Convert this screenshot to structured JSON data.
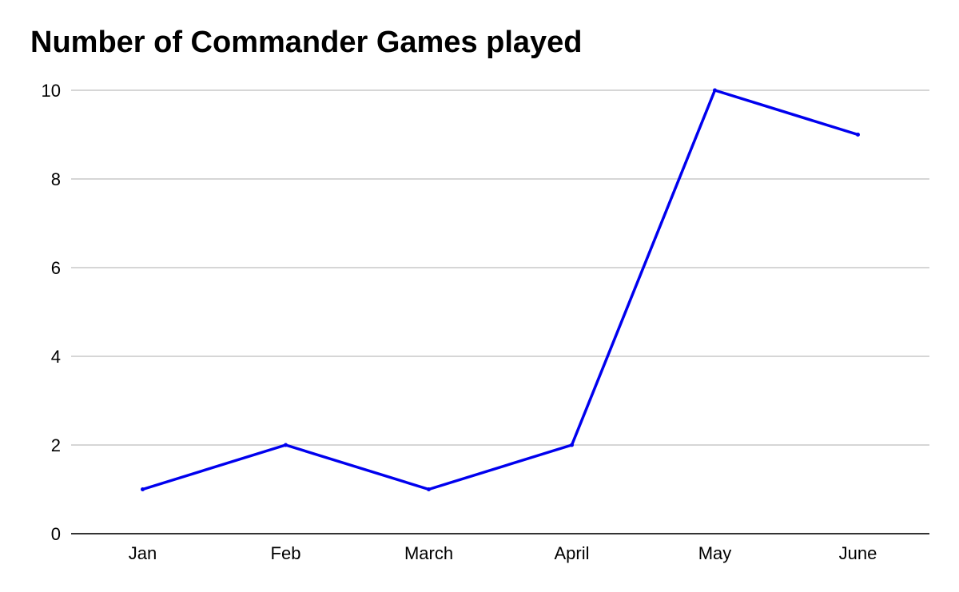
{
  "chart_data": {
    "type": "line",
    "title": "Number of Commander Games played",
    "categories": [
      "Jan",
      "Feb",
      "March",
      "April",
      "May",
      "June"
    ],
    "series": [
      {
        "values": [
          1,
          2,
          1,
          2,
          10,
          9
        ]
      }
    ],
    "xlabel": "",
    "ylabel": "",
    "ylim": [
      0,
      10
    ],
    "yticks": [
      "0",
      "2",
      "4",
      "6",
      "8",
      "10"
    ],
    "grid": true,
    "legend": "none",
    "colors": {
      "line": "#0000ee",
      "grid": "#c8c8c8",
      "axis": "#333333"
    }
  }
}
